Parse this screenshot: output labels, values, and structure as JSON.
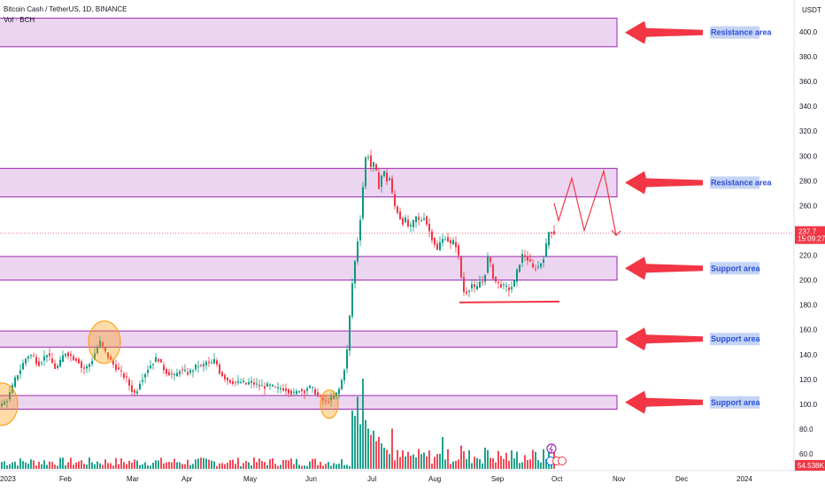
{
  "legend": {
    "symbol_line": "Bitcoin Cash / TetherUS, 1D, BINANCE",
    "volume_line": "Vol · BCH"
  },
  "colors": {
    "up": "#089981",
    "down": "#f23645",
    "zone_fill": "rgba(186,104,200,0.28)",
    "zone_stroke": "#9c27b0",
    "arrow": "#f23645",
    "label_bg": "#c5d3f5",
    "label_text": "#2b4fd8",
    "price_tag": "#f23645"
  },
  "chart_data": {
    "type": "candlestick",
    "title": "Bitcoin Cash / TetherUS, 1D, BINANCE",
    "currency_label": "USDT",
    "y_ticks": [
      "400.0",
      "380.0",
      "360.0",
      "340.0",
      "320.0",
      "300.0",
      "280.0",
      "260.0",
      "240.0",
      "220.0",
      "200.0",
      "180.0",
      "160.0",
      "140.0",
      "120.0",
      "100.0",
      "80.0",
      "60.0"
    ],
    "ylim": [
      56,
      412
    ],
    "x_ticks": [
      "2023",
      "Feb",
      "Mar",
      "Apr",
      "May",
      "Jun",
      "Jul",
      "Aug",
      "Sep",
      "Oct",
      "Nov",
      "Dec",
      "2024"
    ],
    "price_path": [
      [
        0,
        98
      ],
      [
        5,
        100
      ],
      [
        10,
        104
      ],
      [
        15,
        112
      ],
      [
        20,
        122
      ],
      [
        25,
        128
      ],
      [
        30,
        136
      ],
      [
        35,
        140
      ],
      [
        40,
        138
      ],
      [
        45,
        132
      ],
      [
        50,
        136
      ],
      [
        55,
        141
      ],
      [
        60,
        134
      ],
      [
        65,
        128
      ],
      [
        70,
        134
      ],
      [
        75,
        142
      ],
      [
        80,
        140
      ],
      [
        85,
        137
      ],
      [
        90,
        136
      ],
      [
        95,
        128
      ],
      [
        100,
        130
      ],
      [
        105,
        134
      ],
      [
        110,
        143
      ],
      [
        115,
        150
      ],
      [
        120,
        143
      ],
      [
        125,
        137
      ],
      [
        130,
        132
      ],
      [
        135,
        128
      ],
      [
        140,
        124
      ],
      [
        145,
        120
      ],
      [
        150,
        112
      ],
      [
        155,
        108
      ],
      [
        160,
        118
      ],
      [
        165,
        124
      ],
      [
        170,
        130
      ],
      [
        175,
        134
      ],
      [
        180,
        138
      ],
      [
        185,
        130
      ],
      [
        190,
        126
      ],
      [
        195,
        124
      ],
      [
        200,
        122
      ],
      [
        205,
        128
      ],
      [
        210,
        126
      ],
      [
        215,
        125
      ],
      [
        220,
        128
      ],
      [
        225,
        132
      ],
      [
        230,
        130
      ],
      [
        235,
        134
      ],
      [
        240,
        132
      ],
      [
        245,
        136
      ],
      [
        250,
        126
      ],
      [
        255,
        122
      ],
      [
        260,
        119
      ],
      [
        265,
        118
      ],
      [
        270,
        117
      ],
      [
        275,
        118
      ],
      [
        280,
        116
      ],
      [
        285,
        118
      ],
      [
        290,
        116
      ],
      [
        295,
        115
      ],
      [
        300,
        114
      ],
      [
        305,
        115
      ],
      [
        310,
        114
      ],
      [
        315,
        112
      ],
      [
        320,
        113
      ],
      [
        325,
        112
      ],
      [
        330,
        110
      ],
      [
        335,
        108
      ],
      [
        340,
        112
      ],
      [
        345,
        110
      ],
      [
        350,
        114
      ],
      [
        355,
        112
      ],
      [
        360,
        108
      ],
      [
        365,
        104
      ],
      [
        370,
        102
      ],
      [
        375,
        104
      ],
      [
        380,
        106
      ],
      [
        385,
        112
      ],
      [
        390,
        124
      ],
      [
        395,
        148
      ],
      [
        398,
        182
      ],
      [
        401,
        205
      ],
      [
        404,
        220
      ],
      [
        407,
        238
      ],
      [
        410,
        256
      ],
      [
        413,
        285
      ],
      [
        416,
        305
      ],
      [
        419,
        298
      ],
      [
        422,
        288
      ],
      [
        425,
        296
      ],
      [
        428,
        282
      ],
      [
        431,
        272
      ],
      [
        434,
        290
      ],
      [
        437,
        285
      ],
      [
        440,
        278
      ],
      [
        443,
        284
      ],
      [
        446,
        262
      ],
      [
        449,
        258
      ],
      [
        452,
        254
      ],
      [
        455,
        248
      ],
      [
        458,
        246
      ],
      [
        461,
        250
      ],
      [
        464,
        240
      ],
      [
        467,
        244
      ],
      [
        470,
        248
      ],
      [
        473,
        252
      ],
      [
        476,
        246
      ],
      [
        479,
        250
      ],
      [
        482,
        252
      ],
      [
        485,
        242
      ],
      [
        488,
        238
      ],
      [
        491,
        232
      ],
      [
        494,
        228
      ],
      [
        497,
        222
      ],
      [
        500,
        234
      ],
      [
        503,
        232
      ],
      [
        506,
        236
      ],
      [
        509,
        230
      ],
      [
        512,
        228
      ],
      [
        515,
        232
      ],
      [
        518,
        226
      ],
      [
        521,
        215
      ],
      [
        524,
        196
      ],
      [
        527,
        188
      ],
      [
        530,
        192
      ],
      [
        533,
        194
      ],
      [
        536,
        198
      ],
      [
        539,
        190
      ],
      [
        542,
        196
      ],
      [
        545,
        200
      ],
      [
        548,
        198
      ],
      [
        551,
        210
      ],
      [
        554,
        222
      ],
      [
        557,
        208
      ],
      [
        560,
        200
      ],
      [
        563,
        198
      ],
      [
        566,
        196
      ],
      [
        569,
        196
      ],
      [
        572,
        194
      ],
      [
        575,
        194
      ],
      [
        578,
        192
      ],
      [
        581,
        196
      ],
      [
        584,
        200
      ],
      [
        587,
        210
      ],
      [
        590,
        216
      ],
      [
        593,
        222
      ],
      [
        596,
        218
      ],
      [
        599,
        216
      ],
      [
        602,
        212
      ],
      [
        605,
        208
      ],
      [
        608,
        212
      ],
      [
        611,
        210
      ],
      [
        614,
        216
      ],
      [
        617,
        220
      ],
      [
        620,
        232
      ],
      [
        623,
        242
      ],
      [
        626,
        238
      ]
    ],
    "volume_peaks": [
      [
        398,
        0.55
      ],
      [
        401,
        0.5
      ],
      [
        404,
        0.68
      ],
      [
        407,
        0.42
      ],
      [
        410,
        0.85
      ],
      [
        413,
        0.46
      ],
      [
        416,
        0.38
      ],
      [
        419,
        0.32
      ],
      [
        422,
        0.36
      ],
      [
        425,
        0.26
      ],
      [
        428,
        0.3
      ],
      [
        431,
        0.24
      ],
      [
        434,
        0.2
      ],
      [
        437,
        0.18
      ],
      [
        440,
        0.14
      ],
      [
        500,
        0.3
      ],
      [
        521,
        0.22
      ],
      [
        548,
        0.2
      ],
      [
        620,
        0.2
      ]
    ],
    "last_price": "237.7",
    "countdown": "15:09:27",
    "volume_value": "54.538K",
    "projection": [
      [
        626,
        262
      ],
      [
        631,
        248
      ],
      [
        646,
        282
      ],
      [
        660,
        240
      ],
      [
        682,
        288
      ],
      [
        696,
        236
      ]
    ],
    "support_line_price": 182
  },
  "zones": [
    {
      "top_price": 411,
      "bottom_price": 388,
      "label": "Resistance area"
    },
    {
      "top_price": 290,
      "bottom_price": 267,
      "label": "Resistance area"
    },
    {
      "top_price": 219,
      "bottom_price": 200,
      "label": "Support area"
    },
    {
      "top_price": 159,
      "bottom_price": 146,
      "label": "Support area"
    },
    {
      "top_price": 107,
      "bottom_price": 96,
      "label": "Support area"
    }
  ],
  "highlight_prices": [
    {
      "price": 150,
      "x": 118
    },
    {
      "price": 100,
      "x": 372
    },
    {
      "price": 100,
      "x": 2
    }
  ]
}
